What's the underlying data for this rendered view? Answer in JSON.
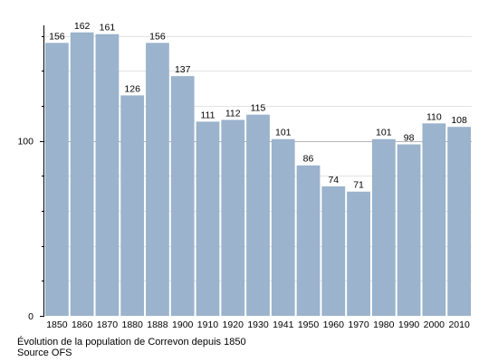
{
  "chart_data": {
    "type": "bar",
    "categories": [
      "1850",
      "1860",
      "1870",
      "1880",
      "1888",
      "1900",
      "1910",
      "1920",
      "1930",
      "1941",
      "1950",
      "1960",
      "1970",
      "1980",
      "1990",
      "2000",
      "2010"
    ],
    "values": [
      156,
      162,
      161,
      126,
      156,
      137,
      111,
      112,
      115,
      101,
      86,
      74,
      71,
      101,
      98,
      110,
      108
    ],
    "ylim": [
      0,
      165
    ],
    "yticks": [
      "0",
      "100"
    ],
    "ytick_values": [
      0,
      100
    ],
    "gridlines": [
      20,
      40,
      60,
      80,
      100,
      120,
      140,
      160
    ],
    "grid": true,
    "bar_color": "#9bb3cc",
    "grid_color": "#e3e3e3",
    "major_grid_color": "#b5b5b5",
    "axis_color": "#000000"
  },
  "caption": {
    "line1": "Évolution de la population de Correvon depuis 1850",
    "line2": "Source OFS"
  }
}
